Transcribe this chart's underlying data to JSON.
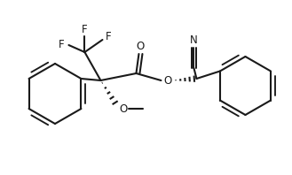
{
  "bg_color": "#ffffff",
  "line_color": "#1a1a1a",
  "line_width": 1.5,
  "font_size": 8.5,
  "figsize": [
    3.29,
    1.98
  ],
  "dpi": 100,
  "xlim": [
    0,
    329
  ],
  "ylim": [
    0,
    198
  ]
}
